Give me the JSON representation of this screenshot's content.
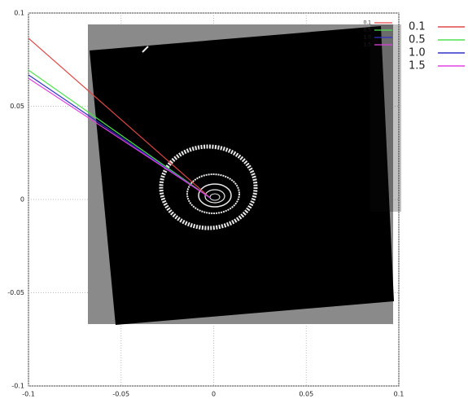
{
  "chart_data": {
    "type": "line",
    "x": [
      -0.1,
      -0.002
    ],
    "series": [
      {
        "name": "0.1",
        "color": "#e04848",
        "values": [
          0.0865,
          0.001
        ]
      },
      {
        "name": "0.5",
        "color": "#50e050",
        "values": [
          0.0694,
          0.001
        ]
      },
      {
        "name": "1.0",
        "color": "#3030c8",
        "values": [
          0.0668,
          0.001
        ]
      },
      {
        "name": "1.5",
        "color": "#e040e0",
        "values": [
          0.065,
          0.001
        ]
      }
    ],
    "xlim": [
      -0.1,
      0.1
    ],
    "xticks": [
      -0.1,
      -0.05,
      0,
      0.05,
      0.1
    ],
    "ylim": [
      -0.1,
      0.1
    ],
    "yticks": [
      -0.1,
      -0.05,
      0,
      0.05,
      0.1
    ],
    "grid": true
  }
}
